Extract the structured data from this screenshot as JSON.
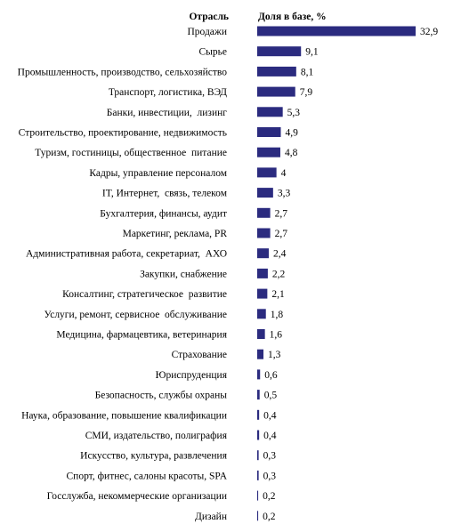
{
  "chart_data": {
    "type": "bar",
    "orientation": "horizontal",
    "headers": {
      "category": "Отрасль",
      "value": "Доля в базе, %"
    },
    "bar_color": "#2b2b7f",
    "categories": [
      "Продажи",
      "Сырье",
      "Промышленность, производство, сельхозяйство",
      "Транспорт, логистика, ВЭД",
      "Банки, инвестиции,  лизинг",
      "Строительство, проектирование, недвижимость",
      "Туризм, гостиницы, общественное  питание",
      "Кадры, управление персоналом",
      "IT, Интернет,  связь, телеком",
      "Бухгалтерия, финансы, аудит",
      "Маркетинг, реклама, PR",
      "Административная работа, секретариат,  АХО",
      "Закупки, снабжение",
      "Консалтинг, стратегическое  развитие",
      "Услуги, ремонт, сервисное  обслуживание",
      "Медицина, фармацевтика, ветеринария",
      "Страхование",
      "Юриспруденция",
      "Безопасность, службы охраны",
      "Наука, образование, повышение квалификации",
      "СМИ, издательство, полиграфия",
      "Искусство, культура, развлечения",
      "Спорт, фитнес, салоны красоты, SPA",
      "Госслужба, некоммерческие организации",
      "Дизайн"
    ],
    "values": [
      32.9,
      9.1,
      8.1,
      7.9,
      5.3,
      4.9,
      4.8,
      4,
      3.3,
      2.7,
      2.7,
      2.4,
      2.2,
      2.1,
      1.8,
      1.6,
      1.3,
      0.6,
      0.5,
      0.4,
      0.4,
      0.3,
      0.3,
      0.2,
      0.2
    ],
    "value_labels": [
      "32,9",
      "9,1",
      "8,1",
      "7,9",
      "5,3",
      "4,9",
      "4,8",
      "4",
      "3,3",
      "2,7",
      "2,7",
      "2,4",
      "2,2",
      "2,1",
      "1,8",
      "1,6",
      "1,3",
      "0,6",
      "0,5",
      "0,4",
      "0,4",
      "0,3",
      "0,3",
      "0,2",
      "0,2"
    ],
    "xlim": [
      0,
      32.9
    ],
    "grid": false,
    "legend": "none"
  }
}
